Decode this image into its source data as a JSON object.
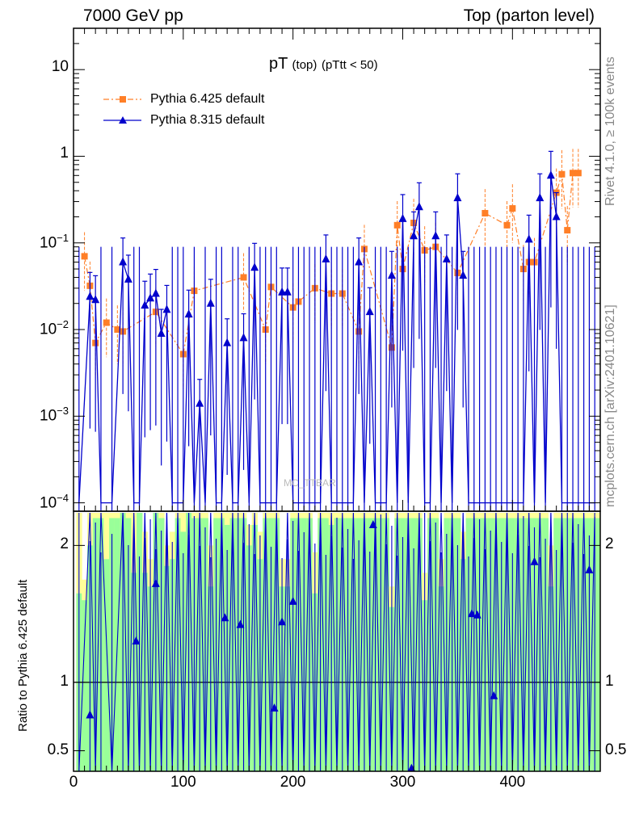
{
  "header": {
    "left": "7000 GeV pp",
    "right": "Top (parton level)"
  },
  "side_text": {
    "rivet": "Rivet 4.1.0, ≥ 100k events",
    "mcplots": "mcplots.cern.ch [arXiv:2401.10621]"
  },
  "watermark": "MC_TTBAR",
  "colors": {
    "pythia6": "#ff7f27",
    "pythia8": "#0000cc",
    "band_yellow": "#ffff99",
    "band_green": "#99ff99"
  },
  "chart_data": [
    {
      "type": "line",
      "title": "pT",
      "title_sub": "(top)",
      "title_cond": "(pTtt < 50)",
      "yscale": "log",
      "xlim": [
        0,
        480
      ],
      "ylim": [
        8e-05,
        30
      ],
      "ytick_labels": [
        {
          "value": 10,
          "label": "10"
        },
        {
          "value": 1,
          "label": "1"
        },
        {
          "value": 0.1,
          "base": "10",
          "exp": "−1"
        },
        {
          "value": 0.01,
          "base": "10",
          "exp": "−2"
        },
        {
          "value": 0.001,
          "base": "10",
          "exp": "−3"
        },
        {
          "value": 0.0001,
          "base": "10",
          "exp": "−4"
        }
      ],
      "legend": [
        "Pythia 6.425 default",
        "Pythia 8.315 default"
      ],
      "legend_position": "top-left",
      "series": [
        {
          "name": "Pythia 6.425 default",
          "marker": "square",
          "x": [
            10,
            15,
            20,
            30,
            40,
            45,
            75,
            100,
            110,
            155,
            175,
            180,
            200,
            205,
            220,
            235,
            245,
            260,
            265,
            290,
            295,
            300,
            310,
            320,
            330,
            350,
            375,
            395,
            400,
            410,
            415,
            420,
            440,
            445,
            450,
            455,
            460
          ],
          "y": [
            0.07,
            0.032,
            0.007,
            0.012,
            0.01,
            0.0095,
            0.016,
            0.0052,
            0.028,
            0.04,
            0.01,
            0.031,
            0.018,
            0.021,
            0.03,
            0.026,
            0.026,
            0.0095,
            0.085,
            0.0062,
            0.16,
            0.05,
            0.17,
            0.082,
            0.09,
            0.045,
            0.22,
            0.16,
            0.25,
            0.05,
            0.06,
            0.06,
            0.38,
            0.62,
            0.14,
            0.64,
            0.64
          ]
        },
        {
          "name": "Pythia 8.315 default",
          "marker": "triangle",
          "x": [
            5,
            15,
            20,
            25,
            35,
            45,
            50,
            55,
            60,
            65,
            70,
            75,
            80,
            85,
            90,
            95,
            100,
            105,
            110,
            115,
            120,
            125,
            130,
            135,
            140,
            145,
            150,
            155,
            160,
            165,
            170,
            175,
            180,
            185,
            190,
            195,
            200,
            205,
            210,
            215,
            220,
            225,
            230,
            235,
            240,
            245,
            250,
            255,
            260,
            265,
            270,
            275,
            280,
            285,
            290,
            295,
            300,
            305,
            310,
            315,
            320,
            325,
            330,
            335,
            340,
            345,
            350,
            355,
            360,
            365,
            370,
            375,
            380,
            385,
            390,
            395,
            400,
            405,
            410,
            415,
            420,
            425,
            430,
            435,
            440,
            445,
            450,
            455,
            460,
            465,
            470,
            475
          ],
          "y": [
            0.0001,
            0.024,
            0.022,
            0.0001,
            0.0001,
            0.06,
            0.038,
            0.0001,
            0.0001,
            0.019,
            0.023,
            0.026,
            0.009,
            0.017,
            0.0001,
            0.0001,
            0.0001,
            0.015,
            0.0001,
            0.0014,
            0.0001,
            0.02,
            0.0001,
            0.0001,
            0.007,
            0.0001,
            0.0001,
            0.008,
            0.0001,
            0.052,
            0.0001,
            0.0001,
            0.0001,
            0.0001,
            0.027,
            0.027,
            0.0001,
            0.0001,
            0.0001,
            0.0001,
            0.0001,
            0.0001,
            0.065,
            0.0001,
            0.0001,
            0.0001,
            0.0001,
            0.0001,
            0.06,
            0.0001,
            0.016,
            0.0001,
            0.0001,
            0.0001,
            0.042,
            0.0001,
            0.19,
            0.0001,
            0.12,
            0.26,
            0.0001,
            0.0001,
            0.12,
            0.0001,
            0.065,
            0.0001,
            0.33,
            0.042,
            0.0001,
            0.0001,
            0.0001,
            0.0001,
            0.0001,
            0.0001,
            0.0001,
            0.0001,
            0.0001,
            0.0001,
            0.0001,
            0.11,
            0.0001,
            0.33,
            0.0001,
            0.6,
            0.2,
            0.0001,
            0.0001,
            0.0001,
            0.0001,
            0.0001,
            0.0001,
            0.0001
          ]
        }
      ]
    },
    {
      "type": "line",
      "ylabel": "Ratio to Pythia 6.425 default",
      "xlim": [
        0,
        480
      ],
      "ylim": [
        0.35,
        2.25
      ],
      "yticks": [
        0.5,
        1,
        2
      ],
      "xticks": [
        0,
        100,
        200,
        300,
        400
      ],
      "reference_line": 1,
      "bands": {
        "x": [
          5,
          10,
          15,
          20,
          25,
          30,
          35,
          40,
          45,
          50,
          55,
          60,
          65,
          70,
          75,
          80,
          85,
          90,
          95,
          100,
          105,
          110,
          115,
          120,
          125,
          130,
          135,
          140,
          145,
          150,
          155,
          160,
          165,
          170,
          175,
          180,
          185,
          190,
          195,
          200,
          205,
          210,
          215,
          220,
          225,
          230,
          235,
          240,
          245,
          250,
          255,
          260,
          265,
          270,
          275,
          280,
          285,
          290,
          295,
          300,
          305,
          310,
          315,
          320,
          325,
          330,
          335,
          340,
          345,
          350,
          355,
          360,
          365,
          370,
          375,
          380,
          385,
          390,
          395,
          400,
          405,
          410,
          415,
          420,
          425,
          430,
          435,
          440,
          445,
          450,
          455,
          460,
          465,
          470,
          475,
          480
        ],
        "yellow_lo": [
          0.35,
          0.35,
          0.35,
          0.35,
          0.35,
          0.35,
          0.35,
          0.35,
          0.35,
          0.35,
          0.35,
          0.35,
          0.35,
          0.35,
          0.35,
          0.35,
          0.35,
          0.35,
          0.35,
          0.35,
          0.35,
          0.35,
          0.35,
          0.35,
          0.35,
          0.35,
          0.35,
          0.35,
          0.35,
          0.35,
          0.35,
          0.35,
          0.35,
          0.35,
          0.35,
          0.35,
          0.35,
          0.35,
          0.35,
          0.35,
          0.35,
          0.35,
          0.35,
          0.35,
          0.35,
          0.35,
          0.35,
          0.35,
          0.35,
          0.35,
          0.35,
          0.35,
          0.35,
          0.35,
          0.35,
          0.35,
          0.35,
          0.35,
          0.35,
          0.35,
          0.35,
          0.35,
          0.35,
          0.35,
          0.35,
          0.35,
          0.35,
          0.35,
          0.35,
          0.35,
          0.35,
          0.35,
          0.35,
          0.35,
          0.35,
          0.35,
          0.35,
          0.35,
          0.35,
          0.35,
          0.35,
          0.35,
          0.35,
          0.35,
          0.35,
          0.35,
          0.35,
          0.35,
          0.35,
          0.35,
          0.35,
          0.35,
          0.35,
          0.35,
          0.35,
          0.35
        ],
        "yellow_hi": [
          2.25,
          1.75,
          2.25,
          2.25,
          2.25,
          2.25,
          2.25,
          2.25,
          2.25,
          2.25,
          2.25,
          2.25,
          2.1,
          1.9,
          2.25,
          2.25,
          2.0,
          2.1,
          2.25,
          2.25,
          2.25,
          2.25,
          2.25,
          2.25,
          2.0,
          2.25,
          2.25,
          2.25,
          2.25,
          2.25,
          2.25,
          2.15,
          2.25,
          2.1,
          2.25,
          2.25,
          2.25,
          1.9,
          1.9,
          2.25,
          2.25,
          2.25,
          2.25,
          1.95,
          2.25,
          2.25,
          2.25,
          2.25,
          2.25,
          2.25,
          2.25,
          2.25,
          2.25,
          2.25,
          2.25,
          2.25,
          2.25,
          1.7,
          2.25,
          2.25,
          2.25,
          2.25,
          2.25,
          1.8,
          2.25,
          2.25,
          1.9,
          2.25,
          2.25,
          2.25,
          2.1,
          2.25,
          2.25,
          2.25,
          2.25,
          2.25,
          2.25,
          2.25,
          2.25,
          2.25,
          2.25,
          2.25,
          2.25,
          2.25,
          2.25,
          2.25,
          2.0,
          2.25,
          2.25,
          2.25,
          2.25,
          2.25,
          2.25,
          2.25,
          2.25,
          2.25
        ],
        "green_lo": [
          0.35,
          0.35,
          0.35,
          0.35,
          0.35,
          0.35,
          0.35,
          0.35,
          0.35,
          0.35,
          0.35,
          0.35,
          0.35,
          0.35,
          0.35,
          0.35,
          0.35,
          0.35,
          0.35,
          0.35,
          0.35,
          0.35,
          0.35,
          0.35,
          0.35,
          0.35,
          0.35,
          0.35,
          0.35,
          0.35,
          0.35,
          0.35,
          0.35,
          0.35,
          0.35,
          0.35,
          0.35,
          0.35,
          0.35,
          0.35,
          0.35,
          0.35,
          0.35,
          0.35,
          0.35,
          0.35,
          0.35,
          0.35,
          0.35,
          0.35,
          0.35,
          0.35,
          0.35,
          0.35,
          0.35,
          0.35,
          0.35,
          0.35,
          0.35,
          0.35,
          0.35,
          0.35,
          0.35,
          0.35,
          0.35,
          0.35,
          0.35,
          0.35,
          0.35,
          0.35,
          0.35,
          0.35,
          0.35,
          0.35,
          0.35,
          0.35,
          0.35,
          0.35,
          0.35,
          0.35,
          0.35,
          0.35,
          0.35,
          0.35,
          0.35,
          0.35,
          0.35,
          0.35,
          0.35,
          0.35,
          0.35,
          0.35,
          0.35,
          0.35,
          0.35,
          0.35
        ],
        "green_hi": [
          1.65,
          1.6,
          2.0,
          2.2,
          2.2,
          1.9,
          2.2,
          2.2,
          2.25,
          2.2,
          1.8,
          2.25,
          1.8,
          1.7,
          2.25,
          2.2,
          1.85,
          1.9,
          2.2,
          2.1,
          2.25,
          2.2,
          2.2,
          2.2,
          1.7,
          2.2,
          2.2,
          2.15,
          2.2,
          2.2,
          2.2,
          2.0,
          2.15,
          1.9,
          2.2,
          2.2,
          2.2,
          1.7,
          1.7,
          2.2,
          2.2,
          2.2,
          2.2,
          1.65,
          2.2,
          2.2,
          2.15,
          2.2,
          2.2,
          2.2,
          2.2,
          2.2,
          2.2,
          2.2,
          2.2,
          2.2,
          2.2,
          1.55,
          2.2,
          2.2,
          2.2,
          2.2,
          2.2,
          1.6,
          2.2,
          2.2,
          1.7,
          2.2,
          2.2,
          2.2,
          1.9,
          2.2,
          2.2,
          2.2,
          2.2,
          2.2,
          2.2,
          2.2,
          2.2,
          2.2,
          2.2,
          2.2,
          2.2,
          2.2,
          2.2,
          2.2,
          1.7,
          2.2,
          2.2,
          2.2,
          2.2,
          2.2,
          2.2,
          2.2,
          2.2,
          2.2
        ]
      },
      "series": [
        {
          "name": "Pythia 8.315 default",
          "marker": "triangle",
          "x": [
            15,
            57,
            75,
            138,
            152,
            183,
            190,
            200,
            273,
            308,
            363,
            368,
            383,
            420,
            470
          ],
          "y": [
            0.76,
            1.3,
            1.72,
            1.47,
            1.42,
            0.81,
            1.44,
            1.59,
            2.15,
            0.37,
            1.5,
            1.49,
            0.9,
            1.88,
            1.82
          ]
        }
      ]
    }
  ]
}
